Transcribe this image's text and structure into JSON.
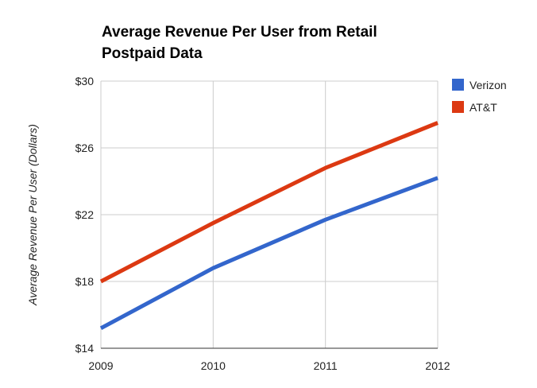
{
  "chart_data": {
    "type": "line",
    "title": "Average Revenue Per User from Retail Postpaid Data",
    "xlabel": "",
    "ylabel": "Average Revenue Per User (Dollars)",
    "x": [
      "2009",
      "2010",
      "2011",
      "2012"
    ],
    "ylim": [
      14,
      30
    ],
    "yticks": [
      14,
      18,
      22,
      26,
      30
    ],
    "ytick_labels": [
      "$14",
      "$18",
      "$22",
      "$26",
      "$30"
    ],
    "grid": true,
    "legend_position": "right",
    "series": [
      {
        "name": "Verizon",
        "color": "#3366cc",
        "values": [
          15.2,
          18.8,
          21.7,
          24.2
        ]
      },
      {
        "name": "AT&T",
        "color": "#dc3912",
        "values": [
          18.0,
          21.5,
          24.8,
          27.5
        ]
      }
    ]
  }
}
